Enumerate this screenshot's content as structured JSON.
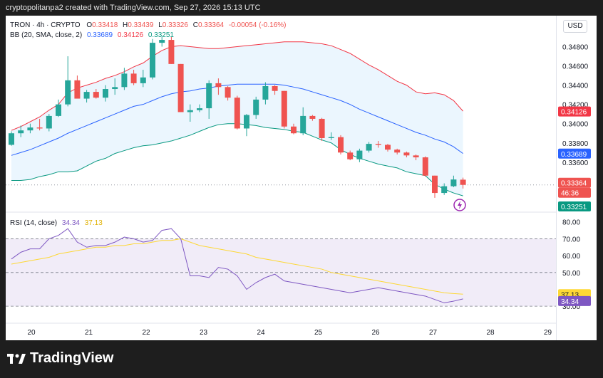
{
  "header": {
    "text": "cryptopolitanpa2 created with TradingView.com, Sep 27, 2026 15:13 UTC"
  },
  "legend": {
    "symbol": "TRON · 4h · CRYPTO",
    "o_label": "O",
    "o": "0.33418",
    "h_label": "H",
    "h": "0.33439",
    "l_label": "L",
    "l": "0.33326",
    "c_label": "C",
    "c": "0.33364",
    "change": "-0.00054 (-0.16%)",
    "bb_label": "BB (20, SMA, close, 2)",
    "bb_basis": "0.33689",
    "bb_upper": "0.34126",
    "bb_lower": "0.33251",
    "rsi_label": "RSI (14, close)",
    "rsi": "34.34",
    "rsi_ma": "37.13"
  },
  "currency": "USD",
  "brand": "TradingView",
  "colors": {
    "up": "#26a69a",
    "down": "#ef5350",
    "basis": "#2962ff",
    "upper": "#f23645",
    "lower": "#089981",
    "rsi": "#7e57c2",
    "rsi_ma": "#fdd835",
    "band_fill": "#e3f2fd",
    "rsi_fill": "#ede7f6"
  },
  "price_labels": [
    "0.34800",
    "0.34600",
    "0.34400",
    "0.34200",
    "0.34000",
    "0.33800",
    "0.33600",
    "0.33400"
  ],
  "price_tags": {
    "upper": "0.34126",
    "basis": "0.33689",
    "close": "0.33364",
    "countdown": "46:36",
    "lower": "0.33251"
  },
  "rsi_labels": [
    "80.00",
    "70.00",
    "60.00",
    "50.00",
    "30.00"
  ],
  "rsi_tags": {
    "ma": "37.13",
    "rsi": "34.34"
  },
  "time_labels": [
    "20",
    "21",
    "22",
    "23",
    "24",
    "25",
    "26",
    "27",
    "28",
    "29"
  ],
  "chart_data": {
    "type": "candlestick",
    "interval": "4h",
    "price_range": [
      0.3314,
      0.349
    ],
    "candles": [
      [
        0.3378,
        0.3392,
        0.3377,
        0.339
      ],
      [
        0.339,
        0.3398,
        0.3386,
        0.3393
      ],
      [
        0.3393,
        0.34,
        0.339,
        0.3396
      ],
      [
        0.3396,
        0.3405,
        0.3393,
        0.3395
      ],
      [
        0.3395,
        0.341,
        0.3392,
        0.3408
      ],
      [
        0.3408,
        0.3425,
        0.3407,
        0.342
      ],
      [
        0.342,
        0.347,
        0.3418,
        0.3445
      ],
      [
        0.3445,
        0.345,
        0.3427,
        0.3426
      ],
      [
        0.3426,
        0.3435,
        0.3422,
        0.3433
      ],
      [
        0.3433,
        0.3436,
        0.3426,
        0.3427
      ],
      [
        0.3427,
        0.344,
        0.3423,
        0.3436
      ],
      [
        0.3436,
        0.3447,
        0.343,
        0.3438
      ],
      [
        0.3438,
        0.3458,
        0.3435,
        0.3452
      ],
      [
        0.3452,
        0.3456,
        0.344,
        0.3442
      ],
      [
        0.3442,
        0.3456,
        0.3438,
        0.3448
      ],
      [
        0.3448,
        0.3488,
        0.3446,
        0.3484
      ],
      [
        0.3484,
        0.349,
        0.348,
        0.3487
      ],
      [
        0.3487,
        0.349,
        0.3462,
        0.3462
      ],
      [
        0.3462,
        0.3462,
        0.3412,
        0.3412
      ],
      [
        0.3412,
        0.342,
        0.3402,
        0.3414
      ],
      [
        0.3414,
        0.342,
        0.3412,
        0.3416
      ],
      [
        0.3416,
        0.3445,
        0.3405,
        0.3442
      ],
      [
        0.3442,
        0.3447,
        0.343,
        0.3438
      ],
      [
        0.3438,
        0.3439,
        0.3424,
        0.3427
      ],
      [
        0.3427,
        0.3429,
        0.3394,
        0.3395
      ],
      [
        0.3395,
        0.341,
        0.3387,
        0.3409
      ],
      [
        0.3409,
        0.3428,
        0.3405,
        0.3425
      ],
      [
        0.3425,
        0.3443,
        0.342,
        0.3439
      ],
      [
        0.3439,
        0.344,
        0.343,
        0.3434
      ],
      [
        0.3434,
        0.3434,
        0.3395,
        0.3397
      ],
      [
        0.3397,
        0.34,
        0.3389,
        0.339
      ],
      [
        0.339,
        0.3417,
        0.3388,
        0.3408
      ],
      [
        0.3408,
        0.3409,
        0.3403,
        0.3405
      ],
      [
        0.3405,
        0.3406,
        0.3382,
        0.3385
      ],
      [
        0.3385,
        0.3391,
        0.3383,
        0.3386
      ],
      [
        0.3386,
        0.3388,
        0.3368,
        0.337
      ],
      [
        0.337,
        0.3372,
        0.3362,
        0.3363
      ],
      [
        0.3363,
        0.3374,
        0.336,
        0.3372
      ],
      [
        0.3372,
        0.3381,
        0.337,
        0.3379
      ],
      [
        0.3379,
        0.3382,
        0.3375,
        0.3378
      ],
      [
        0.3378,
        0.3379,
        0.3371,
        0.3373
      ],
      [
        0.3373,
        0.3374,
        0.3368,
        0.337
      ],
      [
        0.337,
        0.3371,
        0.3365,
        0.3367
      ],
      [
        0.3367,
        0.3368,
        0.3362,
        0.3365
      ],
      [
        0.3365,
        0.3366,
        0.3345,
        0.3346
      ],
      [
        0.3346,
        0.3346,
        0.3323,
        0.3328
      ],
      [
        0.3328,
        0.3338,
        0.3326,
        0.3335
      ],
      [
        0.3335,
        0.3346,
        0.3334,
        0.3342
      ],
      [
        0.33418,
        0.33439,
        0.33326,
        0.33364
      ]
    ],
    "bb_basis": [
      0.3367,
      0.337,
      0.3373,
      0.3377,
      0.3381,
      0.3385,
      0.339,
      0.3394,
      0.3398,
      0.3402,
      0.3406,
      0.341,
      0.3414,
      0.3418,
      0.342,
      0.3424,
      0.3428,
      0.3431,
      0.3433,
      0.3434,
      0.3436,
      0.3437,
      0.3439,
      0.344,
      0.3441,
      0.3441,
      0.3441,
      0.3441,
      0.3441,
      0.344,
      0.3438,
      0.3436,
      0.3433,
      0.343,
      0.3427,
      0.3424,
      0.342,
      0.3415,
      0.3411,
      0.3407,
      0.3403,
      0.3399,
      0.3395,
      0.3391,
      0.3388,
      0.3384,
      0.3381,
      0.3376,
      0.3369
    ],
    "bb_upper": [
      0.3393,
      0.3397,
      0.3402,
      0.3407,
      0.3414,
      0.342,
      0.3432,
      0.3437,
      0.344,
      0.3443,
      0.3447,
      0.345,
      0.3454,
      0.3459,
      0.3463,
      0.347,
      0.3476,
      0.348,
      0.3481,
      0.348,
      0.3479,
      0.3478,
      0.3478,
      0.3479,
      0.348,
      0.3481,
      0.3482,
      0.3483,
      0.3484,
      0.3485,
      0.3485,
      0.3485,
      0.3484,
      0.3483,
      0.3481,
      0.3477,
      0.3473,
      0.3467,
      0.3461,
      0.3456,
      0.345,
      0.3444,
      0.344,
      0.3433,
      0.3431,
      0.3432,
      0.343,
      0.3424,
      0.3413
    ],
    "bb_lower": [
      0.3341,
      0.3341,
      0.3342,
      0.3345,
      0.3347,
      0.335,
      0.335,
      0.3351,
      0.3356,
      0.3361,
      0.3364,
      0.3369,
      0.3372,
      0.3375,
      0.3377,
      0.3378,
      0.338,
      0.3382,
      0.3385,
      0.3388,
      0.3392,
      0.3396,
      0.3399,
      0.34,
      0.34,
      0.3399,
      0.3398,
      0.3396,
      0.3395,
      0.3394,
      0.3392,
      0.3391,
      0.3387,
      0.3383,
      0.338,
      0.3373,
      0.3368,
      0.3364,
      0.3361,
      0.3358,
      0.3356,
      0.3354,
      0.335,
      0.3348,
      0.3346,
      0.3337,
      0.3332,
      0.3328,
      0.3325
    ],
    "rsi_range": [
      25,
      82
    ],
    "rsi": [
      58,
      62,
      64,
      64,
      70,
      72,
      76,
      68,
      65,
      66,
      66,
      68,
      71,
      70,
      68,
      69,
      75,
      76,
      70,
      48,
      48,
      47,
      53,
      52,
      48,
      40,
      44,
      47,
      49,
      45,
      44,
      43,
      42,
      41,
      40,
      39,
      38,
      39,
      40,
      41,
      40,
      39,
      38,
      37,
      36,
      34,
      32,
      33,
      34.34
    ],
    "rsi_ma": [
      55,
      56,
      57,
      58,
      59,
      61,
      62,
      63,
      64,
      65,
      65,
      66,
      66,
      67,
      67,
      68,
      69,
      69,
      70,
      68,
      66,
      65,
      64,
      63,
      62,
      61,
      59,
      58,
      57,
      56,
      55,
      54,
      53,
      52,
      50,
      49,
      48,
      47,
      46,
      45,
      44,
      43,
      42,
      41,
      40,
      39,
      38,
      37.5,
      37.13
    ],
    "rsi_levels": [
      70,
      50,
      30
    ],
    "time_labels": [
      "20",
      "21",
      "22",
      "23",
      "24",
      "25",
      "26",
      "27",
      "28",
      "29"
    ]
  }
}
